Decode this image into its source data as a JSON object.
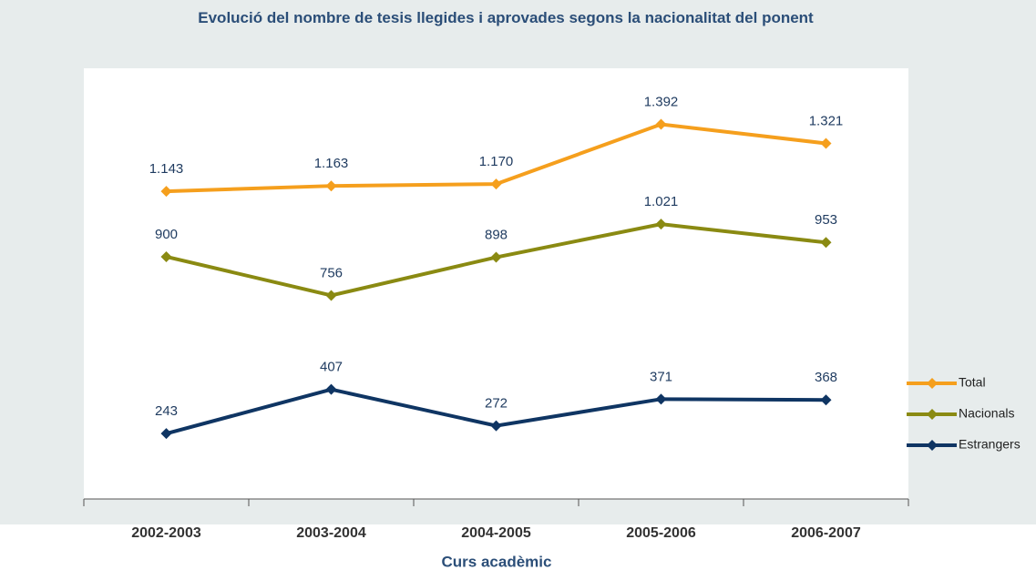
{
  "chart_data": {
    "type": "line",
    "title": "Evolució del nombre de tesis llegides i aprovades segons la nacionalitat del ponent",
    "x_label": "Curs acadèmic",
    "categories": [
      "2002-2003",
      "2003-2004",
      "2004-2005",
      "2005-2006",
      "2006-2007"
    ],
    "ylim": [
      0,
      1600
    ],
    "legend": "right",
    "series": [
      {
        "name": "Total",
        "color": "#f59f1d",
        "values": [
          1143,
          1163,
          1170,
          1392,
          1321
        ],
        "value_labels": [
          "1.143",
          "1.163",
          "1.170",
          "1.392",
          "1.321"
        ]
      },
      {
        "name": "Nacionals",
        "color": "#8a8a12",
        "values": [
          900,
          756,
          898,
          1021,
          953
        ],
        "value_labels": [
          "900",
          "756",
          "898",
          "1.021",
          "953"
        ]
      },
      {
        "name": "Estrangers",
        "color": "#0f3563",
        "values": [
          243,
          407,
          272,
          371,
          368
        ],
        "value_labels": [
          "243",
          "407",
          "272",
          "371",
          "368"
        ]
      }
    ]
  }
}
